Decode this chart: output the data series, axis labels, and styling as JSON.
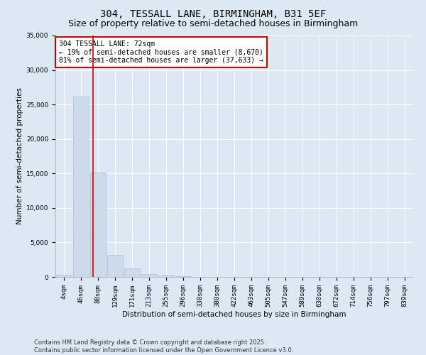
{
  "title_line1": "304, TESSALL LANE, BIRMINGHAM, B31 5EF",
  "title_line2": "Size of property relative to semi-detached houses in Birmingham",
  "xlabel": "Distribution of semi-detached houses by size in Birmingham",
  "ylabel": "Number of semi-detached properties",
  "bar_labels": [
    "4sqm",
    "46sqm",
    "88sqm",
    "129sqm",
    "171sqm",
    "213sqm",
    "255sqm",
    "296sqm",
    "338sqm",
    "380sqm",
    "422sqm",
    "463sqm",
    "505sqm",
    "547sqm",
    "589sqm",
    "630sqm",
    "672sqm",
    "714sqm",
    "756sqm",
    "797sqm",
    "839sqm"
  ],
  "bar_values": [
    300,
    26100,
    15100,
    3200,
    1200,
    420,
    200,
    90,
    0,
    0,
    0,
    0,
    0,
    0,
    0,
    0,
    0,
    0,
    0,
    0,
    0
  ],
  "bar_color": "#ccdaeb",
  "bar_edgecolor": "#a8bfd4",
  "vline_x": 1.72,
  "vline_color": "#cc0000",
  "annotation_text": "304 TESSALL LANE: 72sqm\n← 19% of semi-detached houses are smaller (8,670)\n81% of semi-detached houses are larger (37,633) →",
  "annotation_box_facecolor": "#ffffff",
  "annotation_box_edgecolor": "#cc0000",
  "ylim": [
    0,
    35000
  ],
  "yticks": [
    0,
    5000,
    10000,
    15000,
    20000,
    25000,
    30000,
    35000
  ],
  "background_color": "#dce9f5",
  "plot_background": "#dce9f5",
  "footer_text": "Contains HM Land Registry data © Crown copyright and database right 2025.\nContains public sector information licensed under the Open Government Licence v3.0.",
  "title_fontsize": 10,
  "subtitle_fontsize": 9,
  "label_fontsize": 7.5,
  "tick_fontsize": 6.5,
  "annotation_fontsize": 7,
  "footer_fontsize": 6
}
